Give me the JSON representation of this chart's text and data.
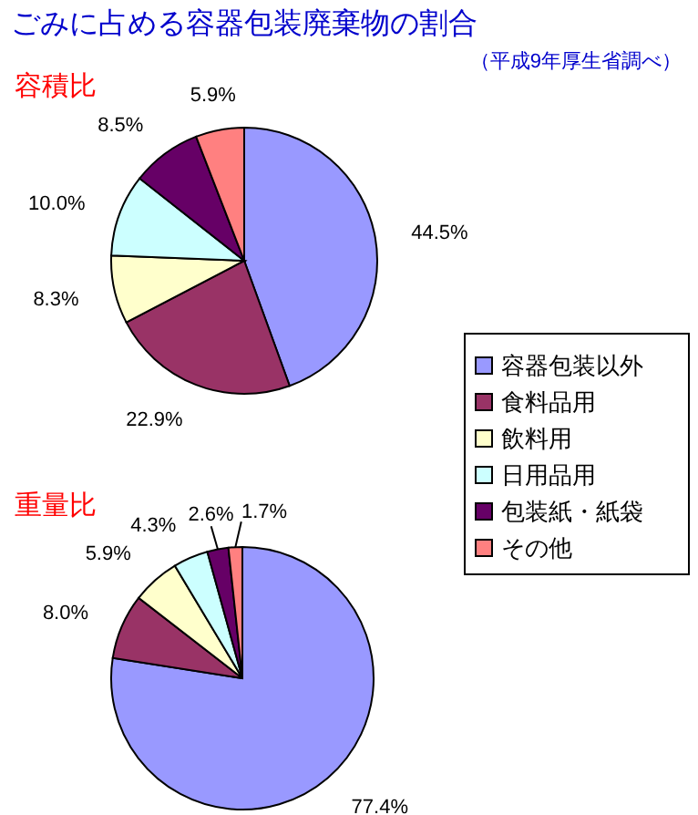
{
  "chart_data": [
    {
      "type": "pie",
      "title": "ごみに占める容器包装廃棄物の割合",
      "subtitle": "（平成9年厚生省調べ）",
      "annotations": [
        "容積比"
      ],
      "categories": [
        "容器包装以外",
        "食料品用",
        "飲料用",
        "日用品用",
        "包装紙・紙袋",
        "その他"
      ],
      "values": [
        44.5,
        22.9,
        8.3,
        10.0,
        8.5,
        5.9
      ],
      "value_labels": [
        "44.5%",
        "22.9%",
        "8.3%",
        "10.0%",
        "8.5%",
        "5.9%"
      ],
      "colors": [
        "#9999ff",
        "#993366",
        "#ffffcc",
        "#ccffff",
        "#660066",
        "#ff8080"
      ],
      "legend": "bottom right"
    },
    {
      "type": "pie",
      "title": "重量比",
      "values": [
        77.4,
        8.0,
        5.9,
        4.3,
        2.6,
        1.7
      ],
      "value_labels": [
        "77.4%",
        "8.0%",
        "5.9%",
        "4.3%",
        "2.6%",
        "1.7%"
      ],
      "colors": [
        "#9999ff",
        "#993366",
        "#ffffcc",
        "#ccffff",
        "#660066",
        "#ff8080"
      ]
    }
  ]
}
